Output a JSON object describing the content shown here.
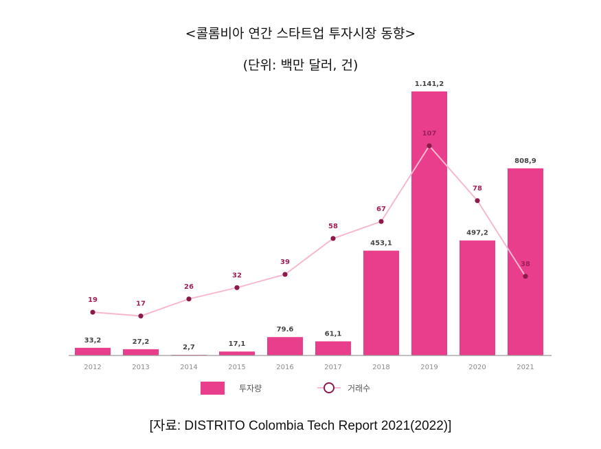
{
  "title": "<콜롬비아 연간 스타트업 투자시장 동향>",
  "subtitle": "(단위: 백만 달러, 건)",
  "source": "[자료: DISTRITO Colombia Tech Report 2021(2022)]",
  "colors": {
    "bar": "#e83e8c",
    "line": "#f6b8cf",
    "marker": "#8b1a4a",
    "axis": "#9a9a9a"
  },
  "chart_data": {
    "type": "bar",
    "categories": [
      "2012",
      "2013",
      "2014",
      "2015",
      "2016",
      "2017",
      "2018",
      "2019",
      "2020",
      "2021"
    ],
    "series": [
      {
        "name": "투자량",
        "kind": "bar",
        "values": [
          33.2,
          27.2,
          2.7,
          17.1,
          79.6,
          61.1,
          453.1,
          1141.2,
          497.2,
          808.9
        ],
        "labels": [
          "33,2",
          "27,2",
          "2,7",
          "17,1",
          "79.6",
          "61,1",
          "453,1",
          "1.141,2",
          "497,2",
          "808,9"
        ]
      },
      {
        "name": "거래수",
        "kind": "line",
        "values": [
          19,
          17,
          26,
          32,
          39,
          58,
          67,
          107,
          78,
          38
        ],
        "labels": [
          "19",
          "17",
          "26",
          "32",
          "39",
          "58",
          "67",
          "107",
          "78",
          "38"
        ]
      }
    ],
    "legend": [
      "투자량",
      "거래수"
    ],
    "legend_position": "bottom",
    "grid": false
  }
}
